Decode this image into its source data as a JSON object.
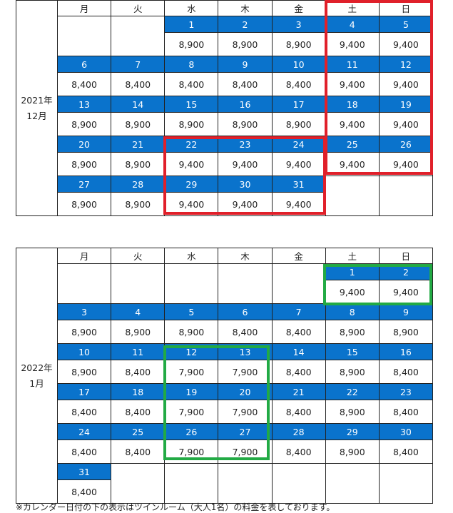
{
  "weekdays": [
    "月",
    "火",
    "水",
    "木",
    "金",
    "土",
    "日"
  ],
  "colors": {
    "date_bg": "#0a73cc",
    "red_box": "#e0202a",
    "green_box": "#22aa44"
  },
  "calendars": [
    {
      "year_label": "2021年",
      "month_label": "12月",
      "weeks": [
        {
          "dates": [
            "",
            "",
            "1",
            "2",
            "3",
            "4",
            "5"
          ],
          "prices": [
            "",
            "",
            "8,900",
            "8,900",
            "8,900",
            "9,400",
            "9,400"
          ]
        },
        {
          "dates": [
            "6",
            "7",
            "8",
            "9",
            "10",
            "11",
            "12"
          ],
          "prices": [
            "8,400",
            "8,400",
            "8,400",
            "8,400",
            "8,400",
            "9,400",
            "9,400"
          ]
        },
        {
          "dates": [
            "13",
            "14",
            "15",
            "16",
            "17",
            "18",
            "19"
          ],
          "prices": [
            "8,900",
            "8,900",
            "8,900",
            "8,900",
            "8,900",
            "9,400",
            "9,400"
          ]
        },
        {
          "dates": [
            "20",
            "21",
            "22",
            "23",
            "24",
            "25",
            "26"
          ],
          "prices": [
            "8,900",
            "8,900",
            "9,400",
            "9,400",
            "9,400",
            "9,400",
            "9,400"
          ]
        },
        {
          "dates": [
            "27",
            "28",
            "29",
            "30",
            "31",
            "",
            ""
          ],
          "prices": [
            "8,900",
            "8,900",
            "9,400",
            "9,400",
            "9,400",
            "",
            ""
          ]
        }
      ]
    },
    {
      "year_label": "2022年",
      "month_label": "1月",
      "weeks": [
        {
          "dates": [
            "",
            "",
            "",
            "",
            "",
            "1",
            "2"
          ],
          "prices": [
            "",
            "",
            "",
            "",
            "",
            "9,400",
            "9,400"
          ]
        },
        {
          "dates": [
            "3",
            "4",
            "5",
            "6",
            "7",
            "8",
            "9"
          ],
          "prices": [
            "8,900",
            "8,900",
            "8,900",
            "8,400",
            "8,400",
            "8,900",
            "8,900"
          ]
        },
        {
          "dates": [
            "10",
            "11",
            "12",
            "13",
            "14",
            "15",
            "16"
          ],
          "prices": [
            "8,900",
            "8,400",
            "7,900",
            "7,900",
            "8,400",
            "8,900",
            "8,400"
          ]
        },
        {
          "dates": [
            "17",
            "18",
            "19",
            "20",
            "21",
            "22",
            "23"
          ],
          "prices": [
            "8,400",
            "8,400",
            "7,900",
            "7,900",
            "8,400",
            "8,900",
            "8,400"
          ]
        },
        {
          "dates": [
            "24",
            "25",
            "26",
            "27",
            "28",
            "29",
            "30"
          ],
          "prices": [
            "8,400",
            "8,400",
            "7,900",
            "7,900",
            "8,400",
            "8,900",
            "8,400"
          ]
        },
        {
          "dates": [
            "31",
            "",
            "",
            "",
            "",
            "",
            ""
          ],
          "prices": [
            "8,400",
            "",
            "",
            "",
            "",
            "",
            ""
          ]
        }
      ]
    }
  ],
  "footnote": "※カレンダー日付の下の表示はツインルーム（大人1名）の料金を表しております。"
}
